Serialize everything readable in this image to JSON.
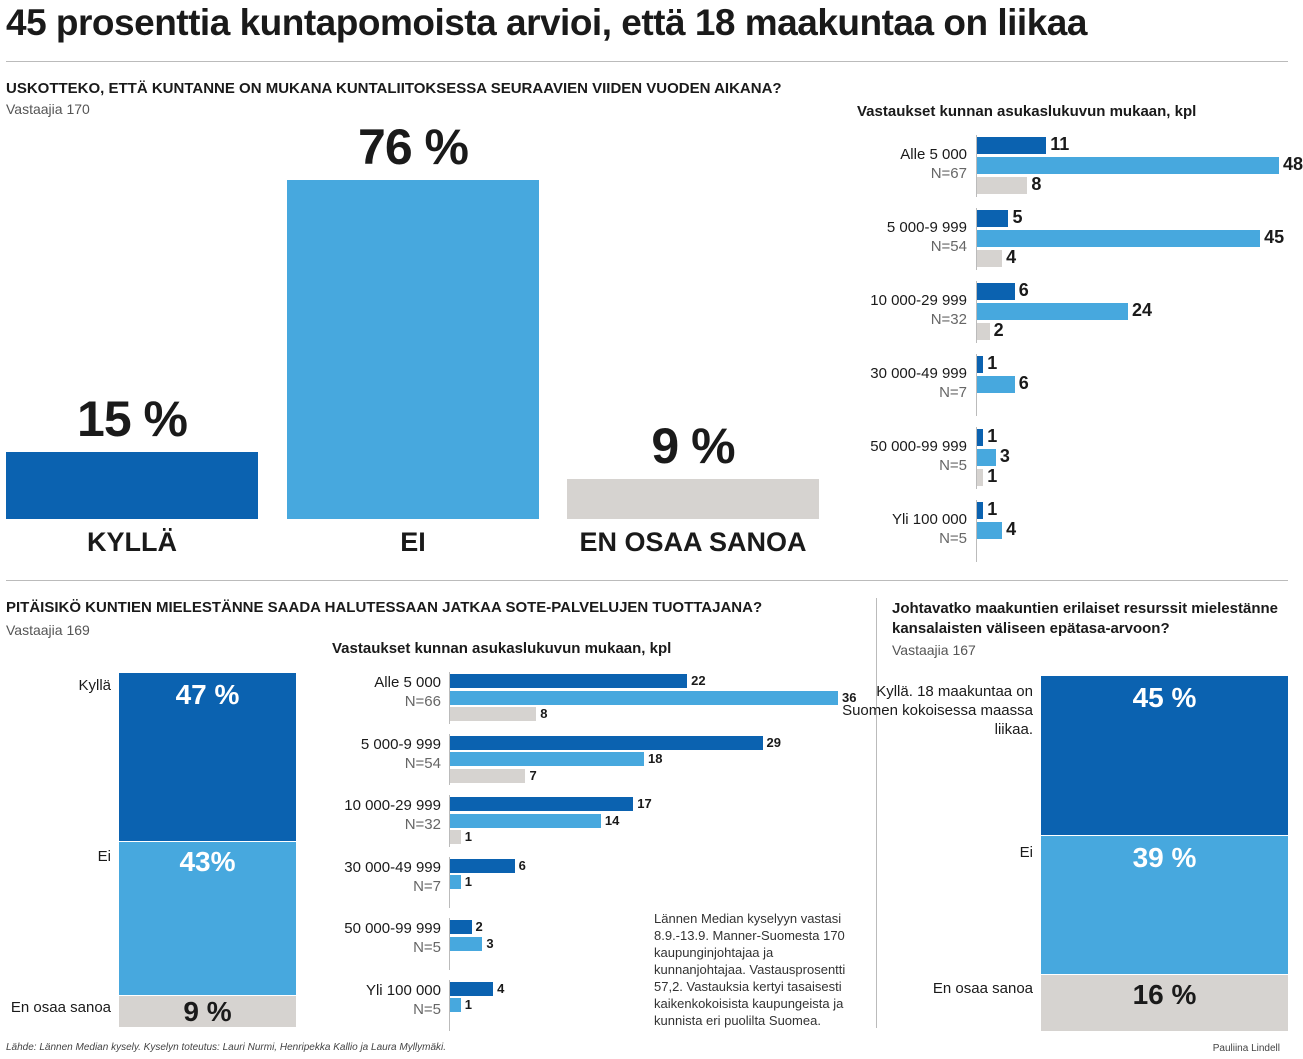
{
  "title": "45 prosenttia kuntapomoista arvioi, että 18 maakuntaa on liikaa",
  "colors": {
    "kylla": "#0b62b0",
    "ei": "#47a8de",
    "eos": "#d6d3d0",
    "rule": "#bbbbbb"
  },
  "section1": {
    "question": "USKOTTEKO, ETTÄ KUNTANNE ON MUKANA KUNTALIITOKSESSA SEURAAVIEN VIIDEN VUODEN AIKANA?",
    "respondents": "Vastaajia 170",
    "chart_data": {
      "type": "bar",
      "categories": [
        "KYLLÄ",
        "EI",
        "EN OSAA SANOA"
      ],
      "values": [
        15,
        76,
        9
      ],
      "value_labels": [
        "15 %",
        "76 %",
        "9 %"
      ],
      "unit": "%"
    }
  },
  "section1_breakdown": {
    "heading": "Vastaukset kunnan asukaslukuvun mukaan, kpl",
    "chart_data": {
      "type": "bar",
      "orientation": "horizontal",
      "groups": [
        {
          "label": "Alle 5 000",
          "n": "N=67",
          "values": [
            11,
            48,
            8
          ]
        },
        {
          "label": "5 000-9 999",
          "n": "N=54",
          "values": [
            5,
            45,
            4
          ]
        },
        {
          "label": "10 000-29 999",
          "n": "N=32",
          "values": [
            6,
            24,
            2
          ]
        },
        {
          "label": "30 000-49 999",
          "n": "N=7",
          "values": [
            1,
            6
          ]
        },
        {
          "label": "50 000-99 999",
          "n": "N=5",
          "values": [
            1,
            3,
            1
          ]
        },
        {
          "label": "Yli 100 000",
          "n": "N=5",
          "values": [
            1,
            4
          ]
        }
      ],
      "xlim": [
        0,
        48
      ]
    }
  },
  "section2": {
    "question": "PITÄISIKÖ KUNTIEN MIELESTÄNNE SAADA HALUTESSAAN JATKAA SOTE-PALVELUJEN TUOTTAJANA?",
    "respondents": "Vastaajia 169",
    "chart_data": {
      "type": "bar",
      "stacked": true,
      "categories": [
        "Kyllä",
        "Ei",
        "En osaa sanoa"
      ],
      "values": [
        47,
        43,
        9
      ],
      "value_labels": [
        "47 %",
        "43%",
        "9 %"
      ]
    }
  },
  "section2_breakdown": {
    "heading": "Vastaukset kunnan asukaslukuvun mukaan, kpl",
    "chart_data": {
      "type": "bar",
      "orientation": "horizontal",
      "groups": [
        {
          "label": "Alle 5 000",
          "n": "N=66",
          "values": [
            22,
            36,
            8
          ]
        },
        {
          "label": "5 000-9 999",
          "n": "N=54",
          "values": [
            29,
            18,
            7
          ]
        },
        {
          "label": "10 000-29 999",
          "n": "N=32",
          "values": [
            17,
            14,
            1
          ]
        },
        {
          "label": "30 000-49 999",
          "n": "N=7",
          "values": [
            6,
            1
          ]
        },
        {
          "label": "50 000-99 999",
          "n": "N=5",
          "values": [
            2,
            3
          ]
        },
        {
          "label": "Yli 100 000",
          "n": "N=5",
          "values": [
            4,
            1
          ]
        }
      ],
      "xlim": [
        0,
        36
      ]
    }
  },
  "note": "Lännen Median kyselyyn vastasi 8.9.-13.9. Manner-Suomesta 170 kaupunginjohtajaa ja kunnanjohtajaa. Vastausprosentti 57,2. Vastauksia kertyi tasaisesti kaikenkokoisista kaupungeista ja kunnista eri puolilta Suomea.",
  "section3": {
    "question": "Johtavatko maakuntien erilaiset resurssit mielestänne kansalaisten väliseen epätasa-arvoon?",
    "respondents": "Vastaajia 167",
    "chart_data": {
      "type": "bar",
      "stacked": true,
      "categories": [
        "Kyllä. 18 maakuntaa on Suomen kokoisessa maassa liikaa.",
        "Ei",
        "En osaa sanoa"
      ],
      "values": [
        45,
        39,
        16
      ],
      "value_labels": [
        "45 %",
        "39 %",
        "16 %"
      ]
    }
  },
  "footer": {
    "source": "Lähde: Lännen Median kysely. Kyselyn toteutus: Lauri Nurmi, Henripekka Kallio ja Laura Myllymäki.",
    "credit": "Pauliina Lindell"
  }
}
